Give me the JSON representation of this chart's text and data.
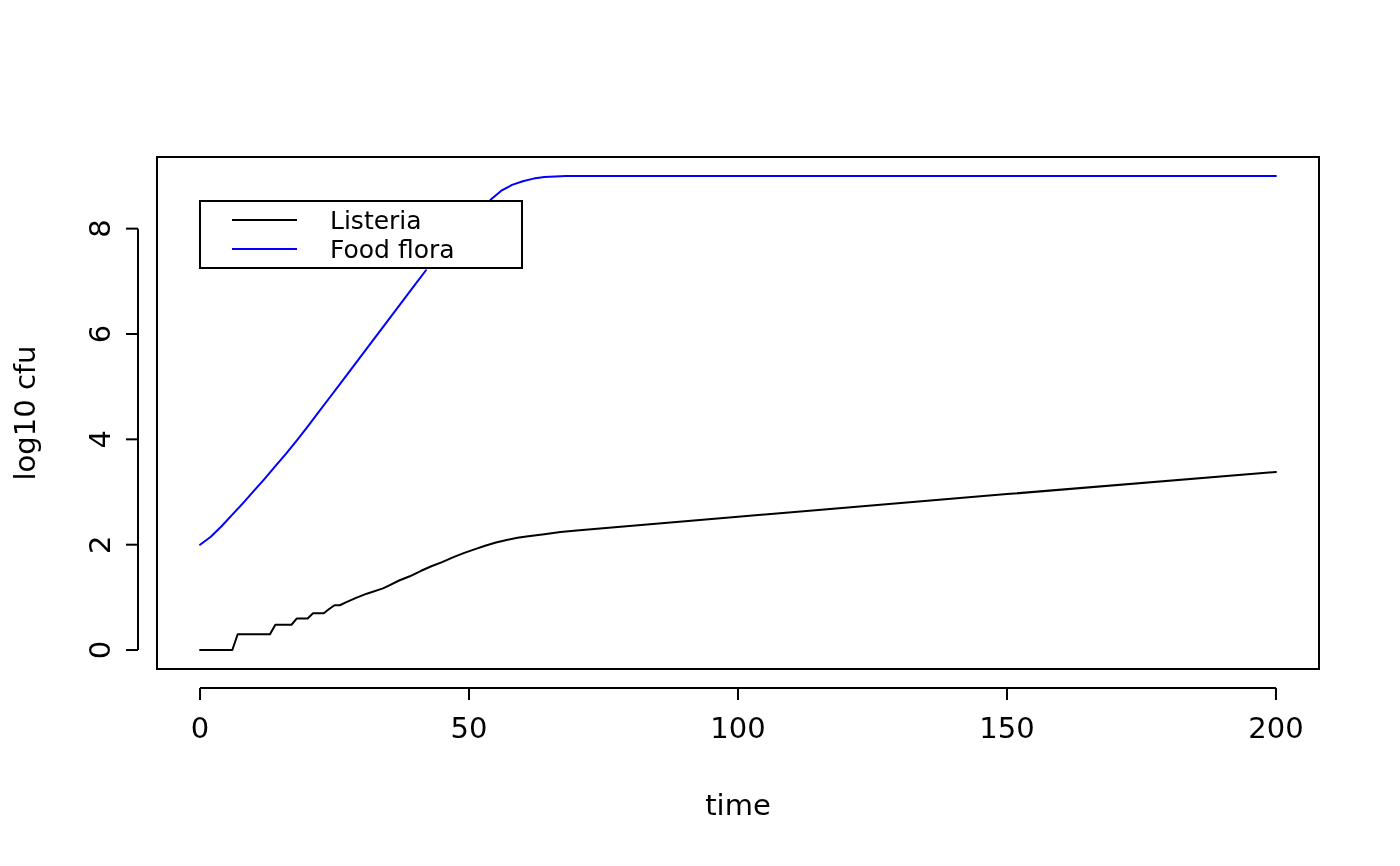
{
  "chart_data": {
    "type": "line",
    "xlabel": "time",
    "ylabel": "log10 cfu",
    "xlim": [
      -8,
      208
    ],
    "ylim": [
      -0.36,
      9.36
    ],
    "xticks": [
      0,
      50,
      100,
      150,
      200
    ],
    "yticks": [
      0,
      2,
      4,
      6,
      8
    ],
    "legend": "top left",
    "series": [
      {
        "name": "Listeria",
        "color": "#000000",
        "x": [
          0,
          6,
          7,
          13,
          14,
          17,
          18,
          20,
          21,
          23,
          24,
          25,
          26,
          27,
          29,
          31,
          34,
          35,
          37,
          39,
          41,
          43,
          45,
          47,
          49,
          51,
          53,
          55,
          57,
          59,
          61,
          64,
          67,
          70,
          100,
          150,
          200
        ],
        "values": [
          0,
          0,
          0.3,
          0.3,
          0.48,
          0.48,
          0.6,
          0.6,
          0.7,
          0.7,
          0.78,
          0.85,
          0.85,
          0.9,
          0.99,
          1.07,
          1.17,
          1.22,
          1.32,
          1.4,
          1.5,
          1.59,
          1.67,
          1.76,
          1.84,
          1.91,
          1.98,
          2.04,
          2.09,
          2.13,
          2.16,
          2.2,
          2.24,
          2.27,
          2.53,
          2.96,
          3.38
        ]
      },
      {
        "name": "Food flora",
        "color": "#0000ff",
        "x": [
          0,
          2,
          4,
          6,
          8,
          10,
          12,
          14,
          16,
          18,
          20,
          22,
          24,
          26,
          28,
          30,
          32,
          34,
          36,
          38,
          40,
          42,
          44,
          46,
          48,
          50,
          52,
          54,
          56,
          58,
          60,
          62,
          64,
          66,
          68,
          70,
          100,
          150,
          200
        ],
        "values": [
          2.0,
          2.15,
          2.35,
          2.57,
          2.79,
          3.02,
          3.25,
          3.49,
          3.73,
          3.98,
          4.24,
          4.51,
          4.78,
          5.05,
          5.32,
          5.59,
          5.86,
          6.13,
          6.4,
          6.67,
          6.94,
          7.21,
          null,
          null,
          null,
          null,
          null,
          8.55,
          8.72,
          8.83,
          8.9,
          8.95,
          8.98,
          8.99,
          9.0,
          9.0,
          9.0,
          9.0,
          9.0
        ]
      }
    ]
  }
}
